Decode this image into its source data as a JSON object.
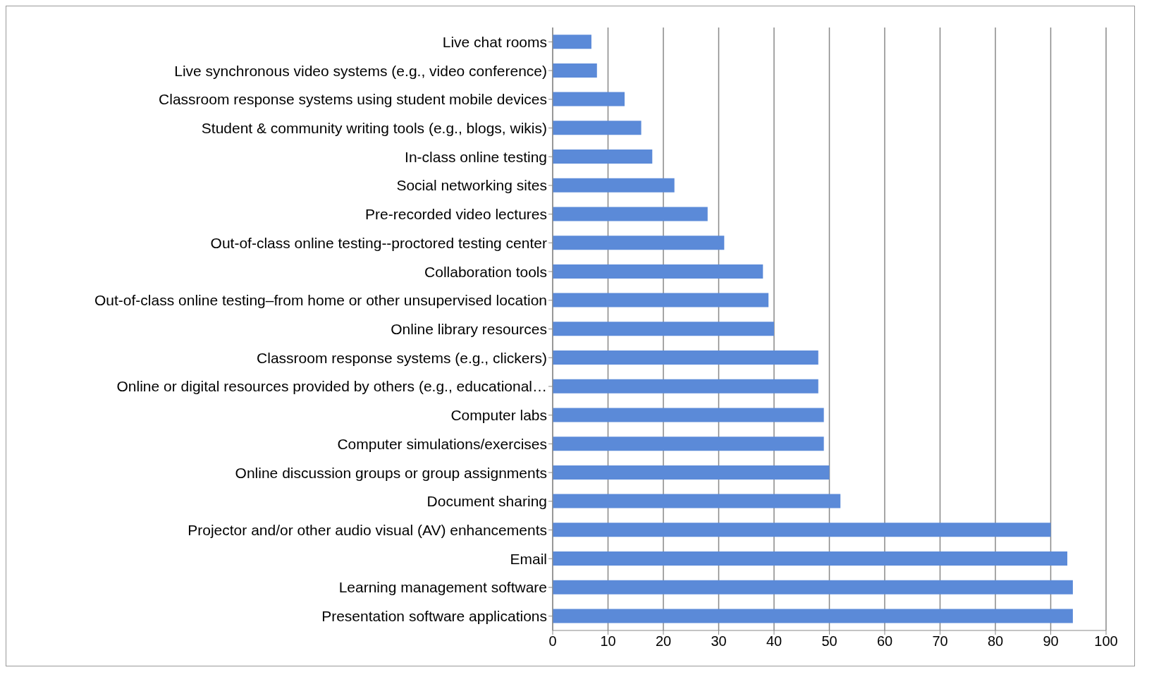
{
  "chart_data": {
    "type": "bar",
    "orientation": "horizontal",
    "categories": [
      "Live chat rooms",
      "Live synchronous video systems (e.g., video conference)",
      "Classroom response systems using student mobile devices",
      "Student & community writing tools (e.g., blogs, wikis)",
      "In-class online testing",
      "Social networking sites",
      "Pre-recorded video lectures",
      "Out-of-class online testing--proctored testing center",
      "Collaboration tools",
      "Out-of-class online testing–from home or other unsupervised location",
      "Online library resources",
      "Classroom response systems (e.g., clickers)",
      "Online or digital resources provided by others (e.g., educational…",
      "Computer labs",
      "Computer simulations/exercises",
      "Online discussion groups or group assignments",
      "Document sharing",
      "Projector and/or other audio visual (AV) enhancements",
      "Email",
      "Learning management software",
      "Presentation software applications"
    ],
    "values": [
      7,
      8,
      13,
      16,
      18,
      22,
      28,
      31,
      38,
      39,
      40,
      48,
      48,
      49,
      49,
      50,
      52,
      90,
      93,
      94,
      94
    ],
    "color": "#5b8ad8",
    "xlim": [
      0,
      100
    ],
    "xticks": [
      0,
      10,
      20,
      30,
      40,
      50,
      60,
      70,
      80,
      90,
      100
    ],
    "grid": "x"
  }
}
